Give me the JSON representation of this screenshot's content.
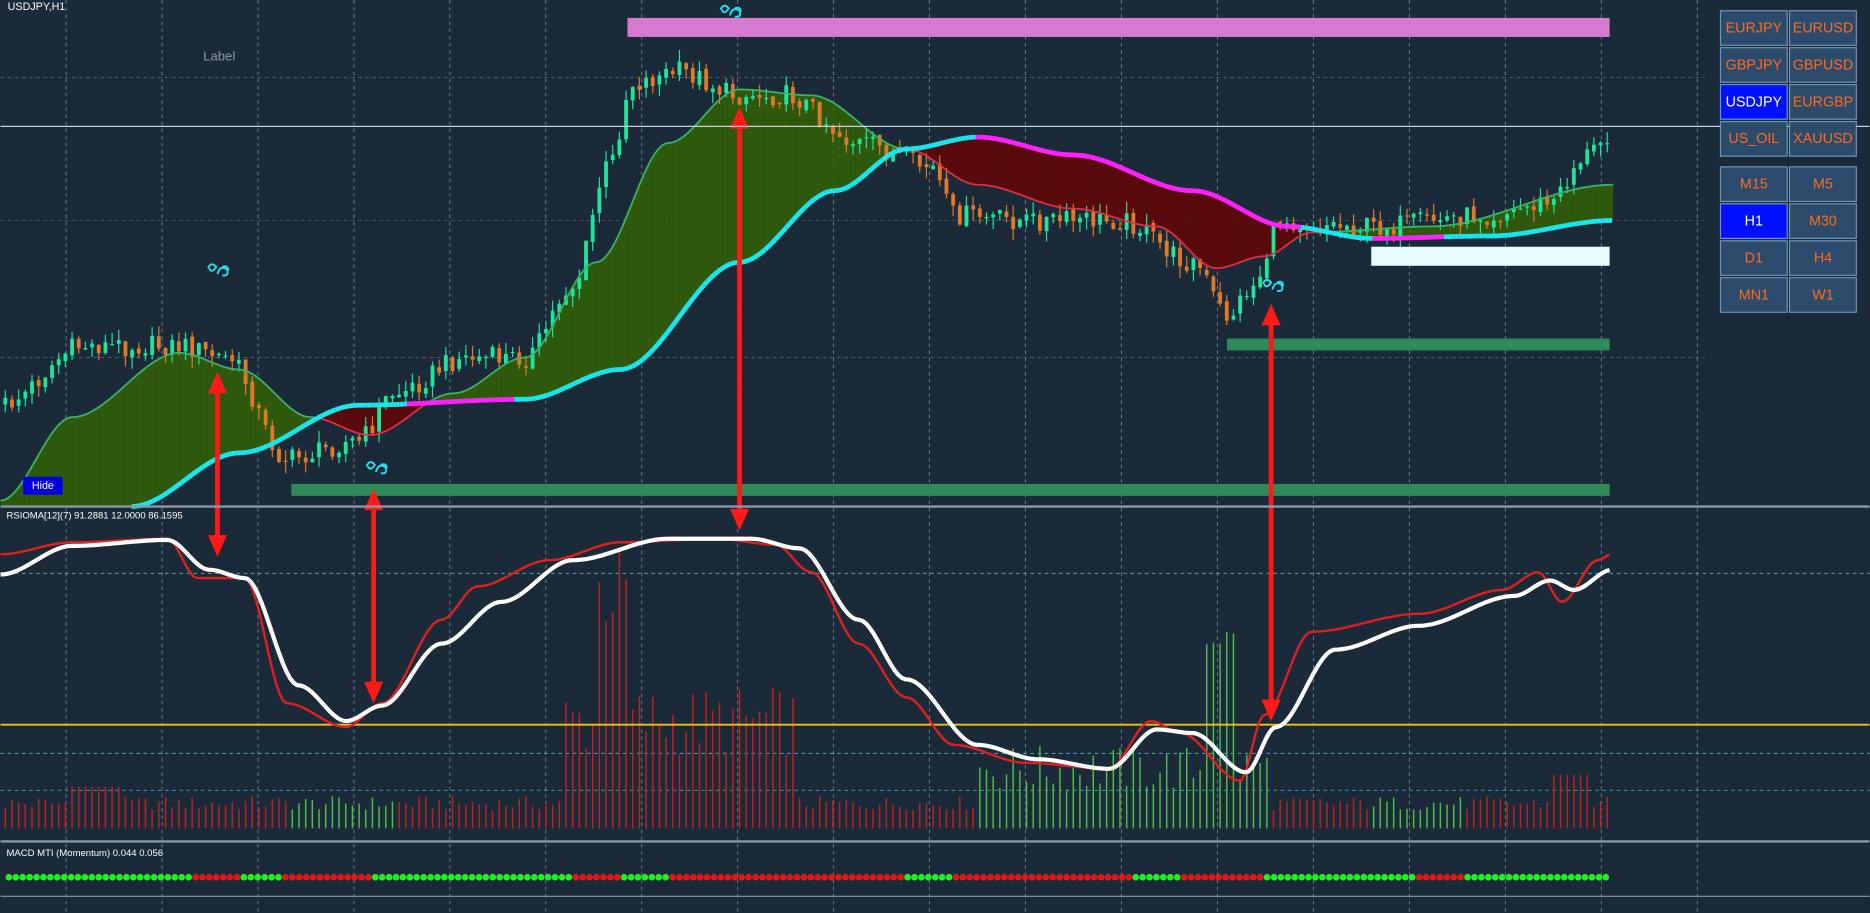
{
  "header": {
    "symbol": "USDJPY,H1"
  },
  "label": "Label",
  "hide_button": "Hide",
  "indicators": {
    "rsioma": "RSIOMA[12](7) 91.2881 12.0000 86.1595",
    "macd": "MACD MTI (Momentum) 0.044 0.056"
  },
  "symbols": [
    {
      "label": "EURJPY",
      "active": false
    },
    {
      "label": "EURUSD",
      "active": false
    },
    {
      "label": "GBPJPY",
      "active": false
    },
    {
      "label": "GBPUSD",
      "active": false
    },
    {
      "label": "USDJPY",
      "active": true
    },
    {
      "label": "EURGBP",
      "active": false
    },
    {
      "label": "US_OIL",
      "active": false
    },
    {
      "label": "XAUUSD",
      "active": false
    }
  ],
  "timeframes": [
    {
      "label": "M15",
      "active": false
    },
    {
      "label": "M5",
      "active": false
    },
    {
      "label": "H1",
      "active": true
    },
    {
      "label": "M30",
      "active": false
    },
    {
      "label": "D1",
      "active": false
    },
    {
      "label": "H4",
      "active": false
    },
    {
      "label": "MN1",
      "active": false
    },
    {
      "label": "W1",
      "active": false
    }
  ]
}
